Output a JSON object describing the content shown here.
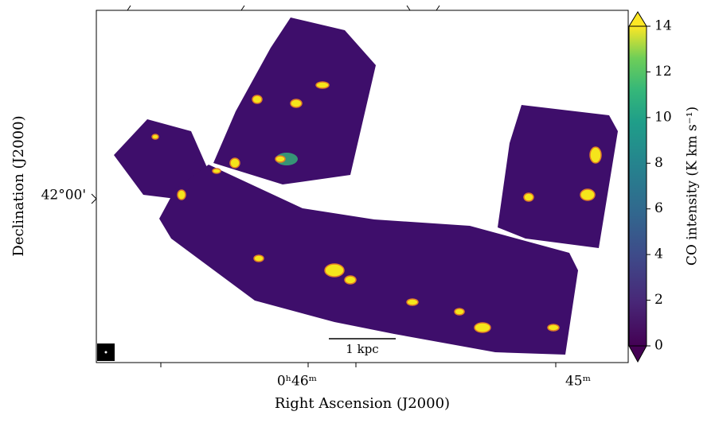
{
  "scale_bar": "1 kpc",
  "chart_data": {
    "type": "image",
    "x_label": "Right Ascension (J2000)",
    "y_label": "Declination (J2000)",
    "xtick_labels": [
      "0ʰ46ᵐ",
      "45ᵐ"
    ],
    "ytick_labels": [
      "42°00'"
    ],
    "colorbar_label": "CO intensity (K km s⁻¹)",
    "clim": [
      0,
      14
    ],
    "cticks": [
      0,
      2,
      4,
      6,
      8,
      10,
      12,
      14
    ]
  }
}
